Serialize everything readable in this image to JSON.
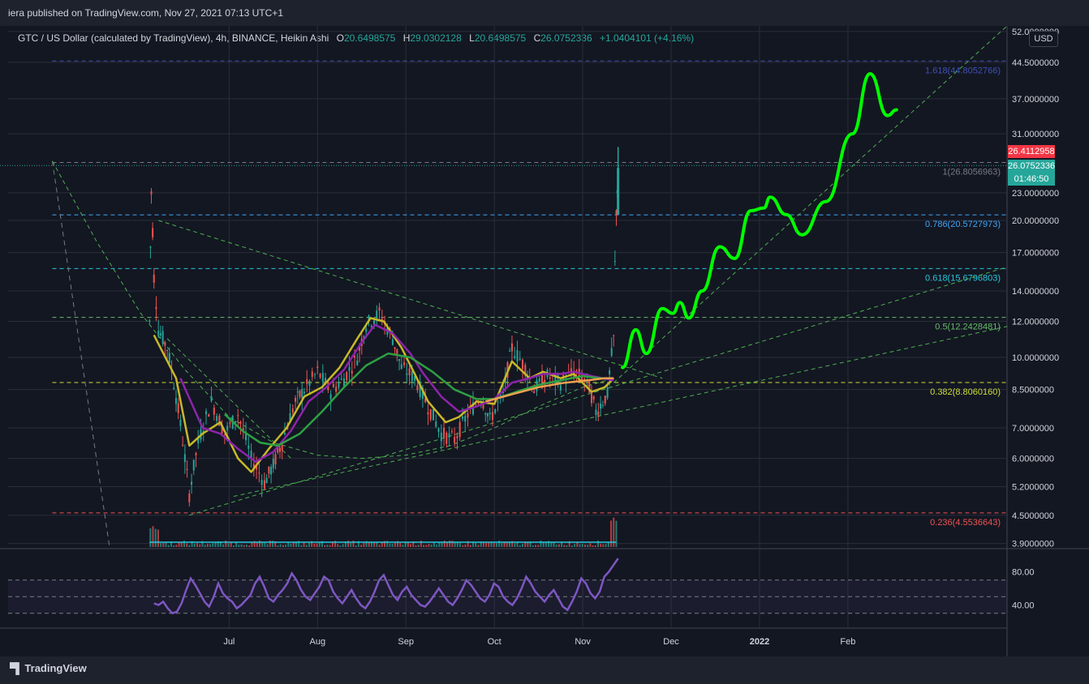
{
  "header": {
    "publisher_line": "iera published on TradingView.com, Nov 27, 2021 07:13 UTC+1",
    "symbol_title": "GTC / US Dollar (calculated by TradingView), 4h, BINANCE, Heikin Ashi",
    "ohlc": [
      {
        "k": "O",
        "v": "20.6498575"
      },
      {
        "k": "H",
        "v": "29.0302128"
      },
      {
        "k": "L",
        "v": "20.6498575"
      },
      {
        "k": "C",
        "v": "26.0752336"
      }
    ],
    "change": "+1.0404101 (+4.16%)",
    "currency_button": "USD"
  },
  "footer": {
    "brand": "TradingView"
  },
  "colors": {
    "background": "#131722",
    "grid": "#2a2e39",
    "up": "#26a69a",
    "down": "#ef5350",
    "projection": "#00ff00",
    "trend": "#4caf50",
    "ma_yellow": "#c7b82a",
    "ma_purple": "#8e24aa",
    "ma_green": "#2ea043",
    "ma_orange": "#f0a050",
    "rsi": "#7e57c2",
    "current_price_bg": "#f23645",
    "last_price_bg": "#26a69a"
  },
  "chart_data": {
    "type": "candlestick",
    "price_scale": "log",
    "ylim": [
      3.8,
      53.5
    ],
    "price_ticks": [
      "52.0000000",
      "44.5000000",
      "37.0000000",
      "31.0000000",
      "23.0000000",
      "20.0000000",
      "17.0000000",
      "14.0000000",
      "12.0000000",
      "10.0000000",
      "8.5000000",
      "7.0000000",
      "6.0000000",
      "5.2000000",
      "4.5000000",
      "3.9000000"
    ],
    "price_tick_values": [
      52,
      44.5,
      37,
      31,
      23,
      20,
      17,
      14,
      12,
      10,
      8.5,
      7,
      6,
      5.2,
      4.5,
      3.9
    ],
    "time_ticks": [
      "Jul",
      "Aug",
      "Sep",
      "Oct",
      "Nov",
      "Dec",
      "2022",
      "Feb"
    ],
    "time_tick_values": [
      0.5,
      1.5,
      2.5,
      3.5,
      4.5,
      5.5,
      6.5,
      7.5
    ],
    "xlim": [
      -2.0,
      9.3
    ],
    "fib_levels": [
      {
        "label": "1.618(44.8052766)",
        "price": 44.8052766,
        "color": "#3f51b5"
      },
      {
        "label": "1(26.8056963)",
        "price": 26.8056963,
        "color": "#787b86"
      },
      {
        "label": "0.786(20.5727973)",
        "price": 20.5727973,
        "color": "#42a5f5"
      },
      {
        "label": "0.618(15.6796803)",
        "price": 15.6796803,
        "color": "#26c6da"
      },
      {
        "label": "0.5(12.2428481)",
        "price": 12.2428481,
        "color": "#66bb6a"
      },
      {
        "label": "0.382(8.8060160)",
        "price": 8.806016,
        "color": "#cddc39"
      },
      {
        "label": "0.236(4.5536643)",
        "price": 4.5536643,
        "color": "#ef5350"
      }
    ],
    "current_price_tag": "26.4112958",
    "last_price_tag": "26.0752336",
    "countdown": "01:46:50",
    "candles": [
      [
        -0.4,
        12.0
      ],
      [
        -0.38,
        23.0
      ],
      [
        -0.35,
        15.0
      ],
      [
        -0.3,
        11.5
      ],
      [
        -0.2,
        10.5
      ],
      [
        -0.1,
        8.2
      ],
      [
        0.0,
        6.0
      ],
      [
        0.05,
        5.0
      ],
      [
        0.15,
        6.5
      ],
      [
        0.3,
        8.0
      ],
      [
        0.45,
        6.8
      ],
      [
        0.6,
        7.5
      ],
      [
        0.75,
        6.0
      ],
      [
        0.9,
        5.3
      ],
      [
        1.0,
        5.8
      ],
      [
        1.1,
        6.5
      ],
      [
        1.25,
        8.0
      ],
      [
        1.35,
        8.5
      ],
      [
        1.5,
        9.3
      ],
      [
        1.65,
        8.4
      ],
      [
        1.8,
        9.0
      ],
      [
        1.95,
        10.0
      ],
      [
        2.05,
        11.8
      ],
      [
        2.2,
        12.5
      ],
      [
        2.35,
        11.0
      ],
      [
        2.45,
        9.5
      ],
      [
        2.6,
        9.0
      ],
      [
        2.75,
        7.8
      ],
      [
        2.9,
        6.8
      ],
      [
        3.05,
        6.6
      ],
      [
        3.2,
        7.5
      ],
      [
        3.35,
        8.2
      ],
      [
        3.45,
        7.3
      ],
      [
        3.6,
        8.3
      ],
      [
        3.7,
        10.5
      ],
      [
        3.85,
        9.5
      ],
      [
        3.95,
        8.5
      ],
      [
        4.1,
        9.1
      ],
      [
        4.25,
        8.8
      ],
      [
        4.4,
        9.3
      ],
      [
        4.55,
        8.9
      ],
      [
        4.65,
        7.6
      ],
      [
        4.78,
        8.3
      ],
      [
        4.85,
        11.0
      ],
      [
        4.88,
        21.0
      ],
      [
        4.9,
        26.0
      ]
    ],
    "projection_points": [
      [
        4.95,
        9.5
      ],
      [
        5.1,
        11.5
      ],
      [
        5.22,
        10.2
      ],
      [
        5.4,
        12.8
      ],
      [
        5.52,
        12.5
      ],
      [
        5.6,
        13.2
      ],
      [
        5.7,
        12.2
      ],
      [
        5.85,
        14.0
      ],
      [
        6.05,
        17.5
      ],
      [
        6.22,
        16.5
      ],
      [
        6.4,
        21.0
      ],
      [
        6.55,
        21.3
      ],
      [
        6.62,
        22.5
      ],
      [
        6.8,
        20.6
      ],
      [
        6.98,
        18.6
      ],
      [
        7.25,
        22.0
      ],
      [
        7.55,
        31.0
      ],
      [
        7.75,
        42.0
      ],
      [
        7.95,
        34.0
      ],
      [
        8.05,
        35.0
      ]
    ],
    "ma_series": [
      {
        "name": "",
        "color": "#c7b82a",
        "points": [
          [
            -0.35,
            11.2
          ],
          [
            -0.1,
            9.0
          ],
          [
            0.05,
            6.4
          ],
          [
            0.2,
            6.8
          ],
          [
            0.4,
            7.2
          ],
          [
            0.6,
            6.0
          ],
          [
            0.75,
            5.6
          ],
          [
            0.95,
            6.3
          ],
          [
            1.15,
            7.0
          ],
          [
            1.35,
            8.2
          ],
          [
            1.55,
            8.6
          ],
          [
            1.75,
            9.5
          ],
          [
            1.95,
            11.0
          ],
          [
            2.1,
            12.2
          ],
          [
            2.25,
            12.0
          ],
          [
            2.45,
            10.5
          ],
          [
            2.6,
            9.2
          ],
          [
            2.75,
            8.0
          ],
          [
            2.95,
            7.2
          ],
          [
            3.1,
            7.4
          ],
          [
            3.3,
            8.0
          ],
          [
            3.5,
            7.9
          ],
          [
            3.7,
            9.8
          ],
          [
            3.9,
            9.0
          ],
          [
            4.05,
            9.3
          ],
          [
            4.25,
            9.0
          ],
          [
            4.4,
            9.2
          ],
          [
            4.6,
            8.4
          ],
          [
            4.75,
            8.6
          ],
          [
            4.85,
            9.0
          ]
        ]
      },
      {
        "name": "",
        "color": "#8e24aa",
        "points": [
          [
            -0.05,
            9.0
          ],
          [
            0.2,
            7.0
          ],
          [
            0.4,
            6.8
          ],
          [
            0.6,
            6.3
          ],
          [
            0.8,
            5.9
          ],
          [
            1.0,
            6.2
          ],
          [
            1.2,
            6.9
          ],
          [
            1.4,
            8.0
          ],
          [
            1.6,
            8.6
          ],
          [
            1.8,
            9.4
          ],
          [
            2.0,
            10.8
          ],
          [
            2.15,
            11.8
          ],
          [
            2.35,
            11.3
          ],
          [
            2.55,
            10.2
          ],
          [
            2.7,
            9.2
          ],
          [
            2.9,
            8.2
          ],
          [
            3.1,
            7.6
          ],
          [
            3.3,
            7.8
          ],
          [
            3.5,
            8.1
          ],
          [
            3.7,
            8.8
          ],
          [
            3.9,
            9.0
          ],
          [
            4.05,
            9.2
          ],
          [
            4.25,
            9.2
          ],
          [
            4.4,
            9.3
          ],
          [
            4.6,
            9.1
          ],
          [
            4.85,
            8.9
          ]
        ]
      },
      {
        "name": "",
        "color": "#2ea043",
        "points": [
          [
            0.45,
            7.5
          ],
          [
            0.65,
            6.9
          ],
          [
            0.85,
            6.5
          ],
          [
            1.05,
            6.4
          ],
          [
            1.3,
            6.8
          ],
          [
            1.55,
            7.6
          ],
          [
            1.8,
            8.6
          ],
          [
            2.05,
            9.6
          ],
          [
            2.3,
            10.2
          ],
          [
            2.55,
            10.0
          ],
          [
            2.8,
            9.3
          ],
          [
            3.05,
            8.5
          ],
          [
            3.3,
            8.1
          ],
          [
            3.5,
            8.1
          ],
          [
            3.75,
            8.4
          ],
          [
            4.0,
            8.7
          ],
          [
            4.25,
            8.9
          ],
          [
            4.5,
            9.1
          ],
          [
            4.7,
            9.0
          ],
          [
            4.85,
            9.0
          ]
        ]
      },
      {
        "name": "",
        "color": "#f0a050",
        "points": [
          [
            3.4,
            8.0
          ],
          [
            3.7,
            8.3
          ],
          [
            4.0,
            8.6
          ],
          [
            4.3,
            8.8
          ],
          [
            4.55,
            8.9
          ],
          [
            4.75,
            9.0
          ],
          [
            4.85,
            9.0
          ]
        ]
      }
    ],
    "trend_lines": [
      {
        "from": [
          -0.3,
          20.0
        ],
        "to": [
          5.4,
          9.0
        ],
        "style": "dashed"
      },
      {
        "from": [
          0.05,
          4.5
        ],
        "to": [
          9.3,
          15.8
        ],
        "style": "dashed"
      },
      {
        "from": [
          0.55,
          4.95
        ],
        "to": [
          9.3,
          11.7
        ],
        "style": "dashed"
      },
      {
        "from": [
          -0.2,
          11.0
        ],
        "to": [
          1.2,
          6.0
        ],
        "style": "dashed"
      },
      {
        "from": [
          4.85,
          8.8
        ],
        "to": [
          9.3,
          53.5
        ],
        "style": "dashed"
      }
    ],
    "gray_diagonal": {
      "from": [
        -1.5,
        27.0
      ],
      "to": [
        -0.85,
        3.8
      ]
    },
    "rsi": {
      "ticks": [
        "80.00",
        "40.00"
      ],
      "tick_values": [
        80,
        40
      ],
      "band": [
        30,
        70
      ],
      "values": [
        42,
        40,
        44,
        36,
        30,
        32,
        42,
        58,
        72,
        64,
        54,
        44,
        38,
        50,
        66,
        54,
        48,
        44,
        36,
        40,
        46,
        52,
        66,
        74,
        62,
        48,
        44,
        52,
        58,
        66,
        78,
        70,
        58,
        50,
        46,
        54,
        62,
        74,
        70,
        56,
        48,
        42,
        50,
        58,
        48,
        40,
        36,
        44,
        56,
        70,
        76,
        64,
        52,
        46,
        56,
        62,
        52,
        46,
        40,
        38,
        44,
        52,
        60,
        52,
        44,
        40,
        48,
        58,
        70,
        64,
        56,
        48,
        44,
        52,
        66,
        62,
        50,
        44,
        40,
        48,
        60,
        74,
        66,
        56,
        50,
        44,
        52,
        58,
        48,
        38,
        34,
        44,
        56,
        72,
        66,
        54,
        48,
        56,
        74,
        80,
        88,
        96
      ]
    }
  }
}
